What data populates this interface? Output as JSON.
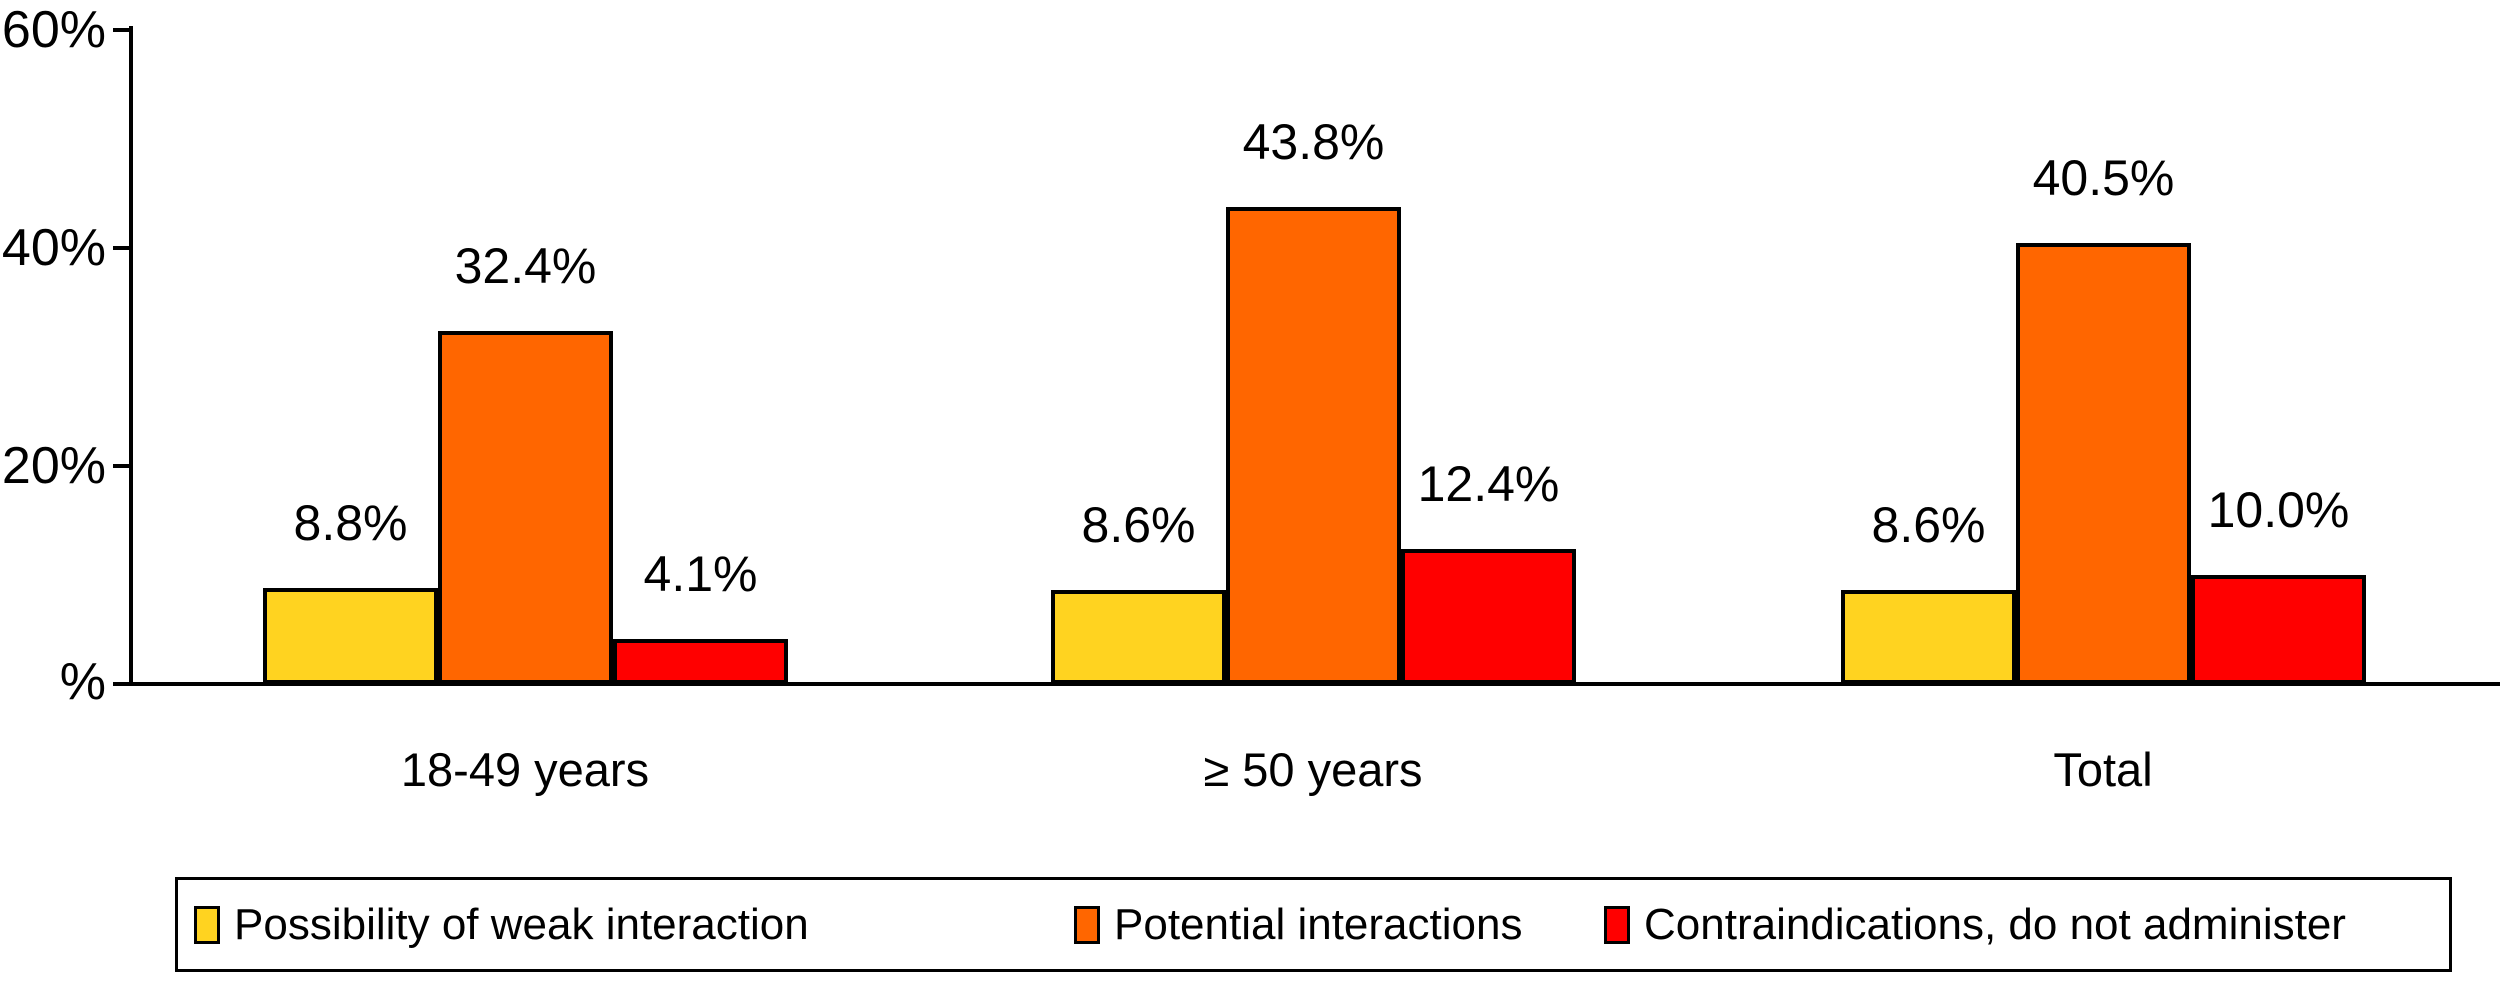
{
  "chart_data": {
    "type": "bar",
    "categories": [
      "18-49 years",
      "≥ 50 years",
      "Total"
    ],
    "series": [
      {
        "name": "Possibility of weak interaction",
        "color": "#FFD320",
        "values": [
          8.8,
          8.6,
          8.6
        ]
      },
      {
        "name": "Potential interactions",
        "color": "#FF6600",
        "values": [
          32.4,
          43.8,
          40.5
        ]
      },
      {
        "name": "Contraindications, do not administer",
        "color": "#FF0000",
        "values": [
          4.1,
          12.4,
          10.0
        ]
      }
    ],
    "value_labels": [
      [
        "8.8%",
        "32.4%",
        "4.1%"
      ],
      [
        "8.6%",
        "43.8%",
        "12.4%"
      ],
      [
        "8.6%",
        "40.5%",
        "10.0%"
      ]
    ],
    "title": "",
    "xlabel": "",
    "ylabel": "%",
    "yticks": [
      {
        "value": 20,
        "label": "20%"
      },
      {
        "value": 40,
        "label": "40%"
      },
      {
        "value": 60,
        "label": "60%"
      }
    ],
    "ylim": [
      0,
      60
    ],
    "grid": false,
    "legend_position": "bottom",
    "bar_border_color": "#000000",
    "axis_color": "#000000",
    "background_color": "#FFFFFF"
  }
}
